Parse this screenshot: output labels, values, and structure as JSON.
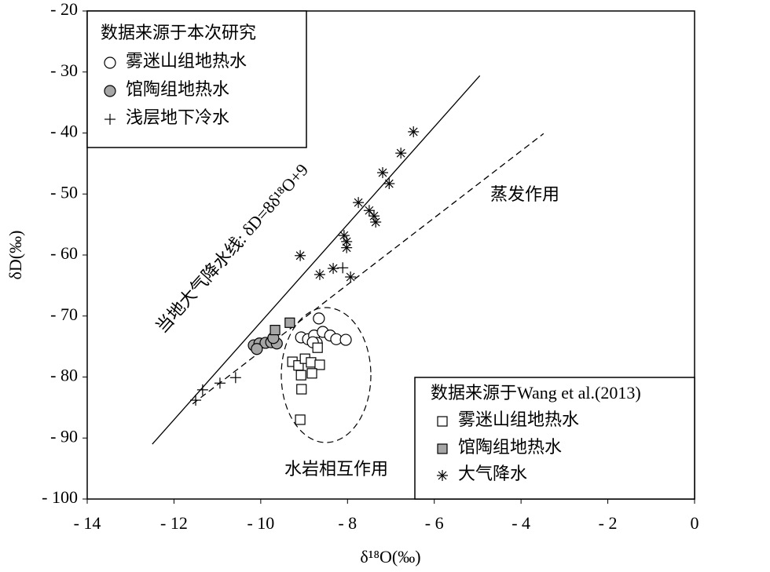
{
  "chart_data": {
    "type": "scatter",
    "x_label": "δ¹⁸O(‰)",
    "y_label": "δD(‰)",
    "xlim": [
      -14,
      0
    ],
    "ylim": [
      -20,
      -100
    ],
    "xticks": [
      {
        "value": -14,
        "label": "- 14"
      },
      {
        "value": -12,
        "label": "- 12"
      },
      {
        "value": -10,
        "label": "- 10"
      },
      {
        "value": -8,
        "label": "- 8"
      },
      {
        "value": -6,
        "label": "- 6"
      },
      {
        "value": -4,
        "label": "- 4"
      },
      {
        "value": -2,
        "label": "- 2"
      },
      0
    ],
    "yticks": [
      {
        "value": -20,
        "label": "- 20"
      },
      {
        "value": -30,
        "label": "- 30"
      },
      {
        "value": -40,
        "label": "- 40"
      },
      {
        "value": -50,
        "label": "- 50"
      },
      {
        "value": -60,
        "label": "- 60"
      },
      {
        "value": -70,
        "label": "- 70"
      },
      {
        "value": -80,
        "label": "- 80"
      },
      {
        "value": -90,
        "label": "- 90"
      },
      {
        "value": -100,
        "label": "- 100"
      }
    ],
    "groups": [
      {
        "title": "数据来源于本次研究",
        "legend": "upper left",
        "series": [
          {
            "name": "雾迷山组地热水",
            "marker": "circle",
            "color": "#ffffff",
            "x": [
              -8.66,
              -9.07,
              -8.91,
              -8.77,
              -8.71,
              -8.57,
              -8.4,
              -8.26,
              -8.04,
              -8.8
            ],
            "y": [
              -70.4,
              -73.5,
              -73.8,
              -73.2,
              -74.4,
              -72.6,
              -73.2,
              -73.8,
              -73.9,
              -74.3
            ]
          },
          {
            "name": "馆陶组地热水",
            "marker": "circle",
            "color": "#a6a6a6",
            "x": [
              -10.16,
              -10.03,
              -9.89,
              -9.76,
              -9.63,
              -10.09,
              -9.71
            ],
            "y": [
              -74.8,
              -74.5,
              -74.4,
              -74.3,
              -74.5,
              -75.4,
              -73.6
            ]
          },
          {
            "name": "浅层地下冷水",
            "marker": "plus",
            "color": "#000000",
            "x": [
              -11.5,
              -11.34,
              -10.94,
              -10.58,
              -8.11
            ],
            "y": [
              -83.8,
              -82.1,
              -81.0,
              -80.1,
              -62.1
            ]
          }
        ]
      },
      {
        "title": "数据来源于Wang et al.(2013)",
        "legend": "lower right",
        "series": [
          {
            "name": "雾迷山组地热水",
            "marker": "square",
            "color": "#ffffff",
            "x": [
              -9.27,
              -9.13,
              -8.98,
              -8.84,
              -8.69,
              -8.64,
              -9.07,
              -8.82,
              -9.06,
              -9.09
            ],
            "y": [
              -77.5,
              -78.1,
              -77.0,
              -77.6,
              -75.2,
              -78.0,
              -79.7,
              -79.4,
              -82.0,
              -87.0
            ]
          },
          {
            "name": "馆陶组地热水",
            "marker": "square",
            "color": "#a6a6a6",
            "x": [
              -9.67,
              -9.33
            ],
            "y": [
              -72.3,
              -71.1
            ]
          },
          {
            "name": "大气降水",
            "marker": "asterisk",
            "color": "#000000",
            "x": [
              -6.48,
              -6.77,
              -7.19,
              -7.04,
              -7.75,
              -7.5,
              -7.39,
              -7.35,
              -8.08,
              -8.02,
              -8.02,
              -9.09,
              -8.64,
              -8.33,
              -7.93
            ],
            "y": [
              -39.8,
              -43.3,
              -46.5,
              -48.3,
              -51.4,
              -52.7,
              -53.6,
              -54.6,
              -56.8,
              -57.8,
              -58.8,
              -60.1,
              -63.2,
              -62.2,
              -63.6
            ]
          }
        ]
      }
    ],
    "lines": [
      {
        "label": "当地大气降水线: δD=8δ¹⁸O+9",
        "style": "solid",
        "x": [
          -12.5,
          -4.95
        ],
        "y": [
          -91,
          -30.6
        ]
      },
      {
        "style": "dashed",
        "x": [
          -11.57,
          -3.48
        ],
        "y": [
          -84.4,
          -40.1
        ]
      }
    ],
    "annotations": [
      "蒸发作用",
      "水岩相互作用"
    ]
  }
}
